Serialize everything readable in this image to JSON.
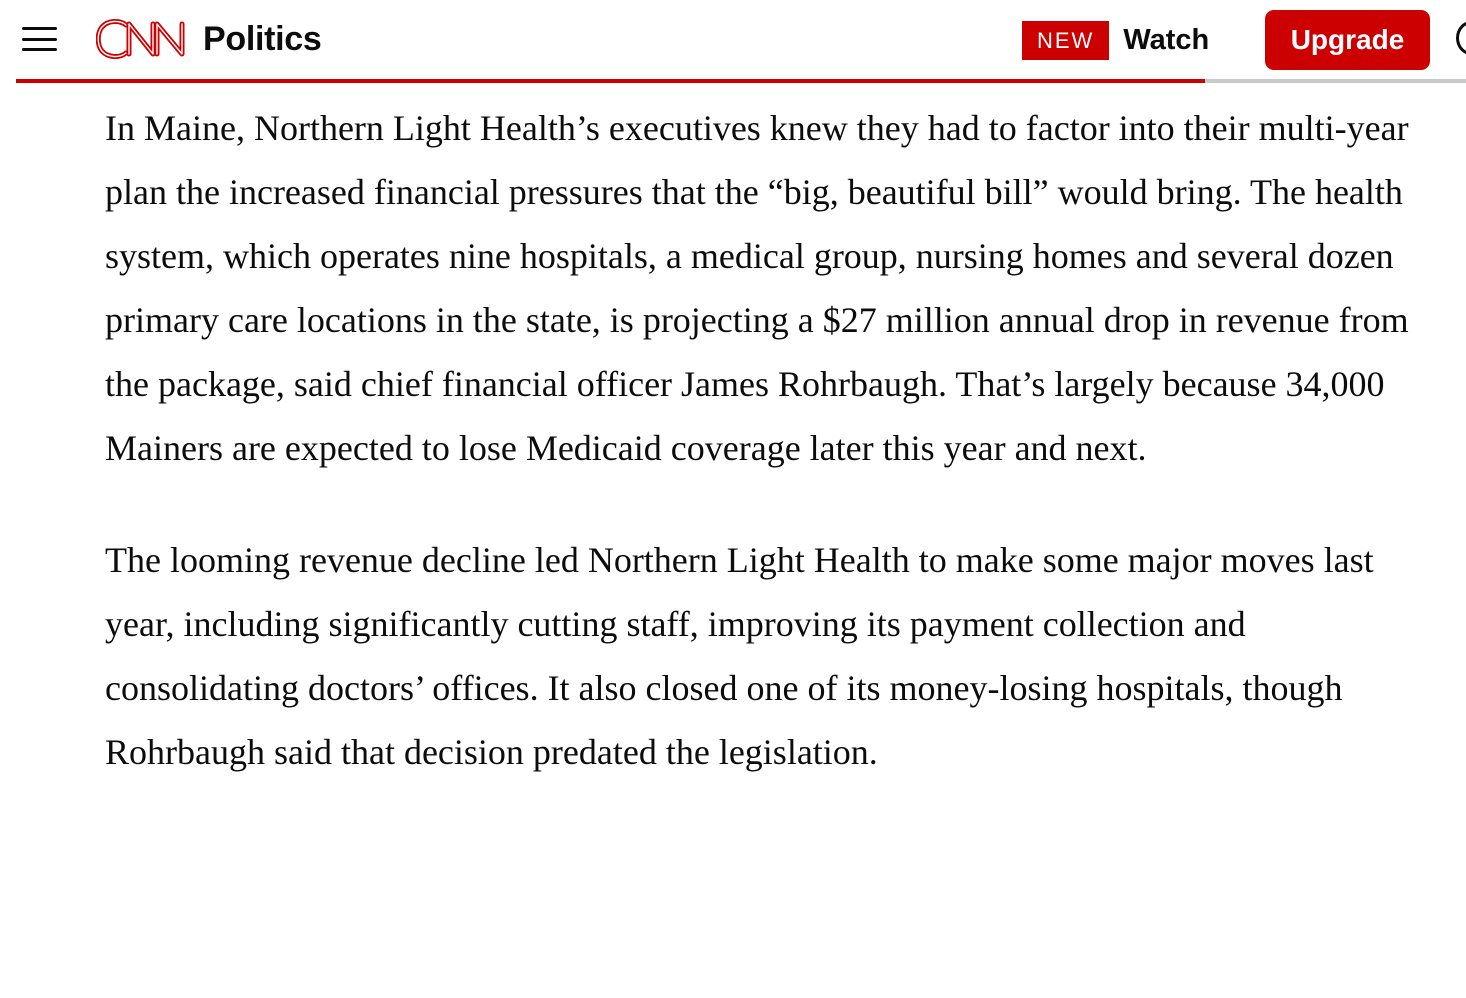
{
  "header": {
    "menu_icon": "hamburger-menu-icon",
    "brand": "CNN",
    "brand_color": "#cc0000",
    "section": "Politics",
    "watch": {
      "badge": "NEW",
      "label": "Watch"
    },
    "upgrade_label": "Upgrade",
    "account_icon": "account-circle-icon",
    "reading_progress": 0.82
  },
  "article": {
    "paragraphs": [
      "In Maine, Northern Light Health’s executives knew they had to factor into their multi-year plan the increased financial pressures that the “big, beautiful bill” would bring. The health system, which operates nine hospitals, a medical group, nursing homes and several dozen primary care locations in the state, is projecting a $27 million annual drop in revenue from the package, said chief financial officer James Rohrbaugh. That’s largely because 34,000 Mainers are expected to lose Medicaid coverage later this year and next.",
      "The looming revenue decline led Northern Light Health to make some major moves last year, including significantly cutting staff, improving its payment collection and consolidating doctors’ offices. It also closed one of its money-losing hospitals, though Rohrbaugh said that decision predated the legislation."
    ]
  },
  "colors": {
    "accent": "#cc0000",
    "text": "#0c0c0c",
    "progress_track": "#c9c9c9"
  }
}
